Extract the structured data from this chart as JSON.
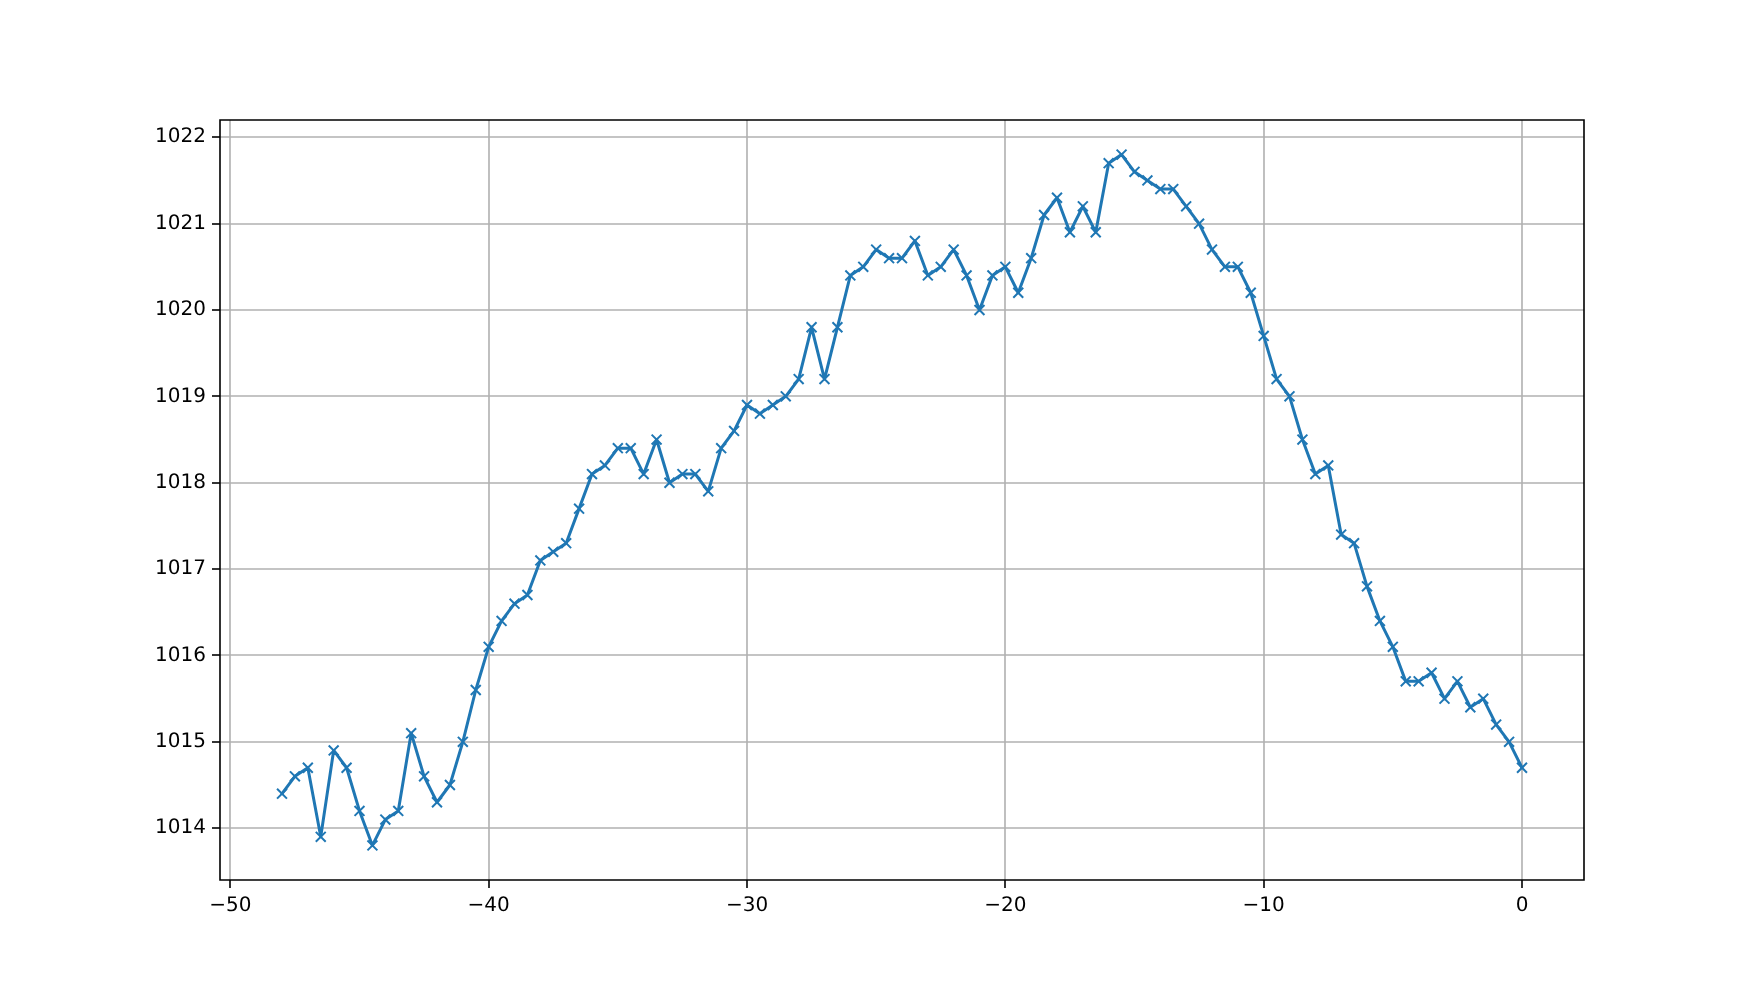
{
  "chart_data": {
    "type": "line",
    "x": [
      -48,
      -47.5,
      -47,
      -46.5,
      -46,
      -45.5,
      -45,
      -44.5,
      -44,
      -43.5,
      -43,
      -42.5,
      -42,
      -41.5,
      -41,
      -40.5,
      -40,
      -39.5,
      -39,
      -38.5,
      -38,
      -37.5,
      -37,
      -36.5,
      -36,
      -35.5,
      -35,
      -34.5,
      -34,
      -33.5,
      -33,
      -32.5,
      -32,
      -31.5,
      -31,
      -30.5,
      -30,
      -29.5,
      -29,
      -28.5,
      -28,
      -27.5,
      -27,
      -26.5,
      -26,
      -25.5,
      -25,
      -24.5,
      -24,
      -23.5,
      -23,
      -22.5,
      -22,
      -21.5,
      -21,
      -20.5,
      -20,
      -19.5,
      -19,
      -18.5,
      -18,
      -17.5,
      -17,
      -16.5,
      -16,
      -15.5,
      -15,
      -14.5,
      -14,
      -13.5,
      -13,
      -12.5,
      -12,
      -11.5,
      -11,
      -10.5,
      -10,
      -9.5,
      -9,
      -8.5,
      -8,
      -7.5,
      -7,
      -6.5,
      -6,
      -5.5,
      -5,
      -4.5,
      -4,
      -3.5,
      -3,
      -2.5,
      -2,
      -1.5,
      -1,
      -0.5,
      0
    ],
    "series": [
      {
        "color": "#1f77b4",
        "values": [
          1014.4,
          1014.6,
          1014.7,
          1013.9,
          1014.9,
          1014.7,
          1014.2,
          1013.8,
          1014.1,
          1014.2,
          1015.1,
          1014.6,
          1014.3,
          1014.5,
          1015.0,
          1015.6,
          1016.1,
          1016.4,
          1016.6,
          1016.7,
          1017.1,
          1017.2,
          1017.3,
          1017.7,
          1018.1,
          1018.2,
          1018.4,
          1018.4,
          1018.1,
          1018.5,
          1018.0,
          1018.1,
          1018.1,
          1017.9,
          1018.4,
          1018.6,
          1018.9,
          1018.8,
          1018.9,
          1019.0,
          1019.2,
          1019.8,
          1019.2,
          1019.8,
          1020.4,
          1020.5,
          1020.7,
          1020.6,
          1020.6,
          1020.8,
          1020.4,
          1020.5,
          1020.7,
          1020.4,
          1020.0,
          1020.4,
          1020.5,
          1020.2,
          1020.6,
          1021.1,
          1021.3,
          1020.9,
          1021.2,
          1020.9,
          1021.7,
          1021.8,
          1021.6,
          1021.5,
          1021.4,
          1021.4,
          1021.2,
          1021.0,
          1020.7,
          1020.5,
          1020.5,
          1020.2,
          1019.7,
          1019.2,
          1019.0,
          1018.5,
          1018.1,
          1018.2,
          1017.4,
          1017.3,
          1016.8,
          1016.4,
          1016.1,
          1015.7,
          1015.7,
          1015.8,
          1015.5,
          1015.7,
          1015.4,
          1015.5,
          1015.2,
          1015.0,
          1014.7
        ]
      }
    ],
    "xlim": [
      -50.4,
      2.4
    ],
    "ylim": [
      1013.4,
      1022.2
    ],
    "xticks": [
      {
        "value": -50,
        "label": "−50"
      },
      {
        "value": -40,
        "label": "−40"
      },
      {
        "value": -30,
        "label": "−30"
      },
      {
        "value": -20,
        "label": "−20"
      },
      {
        "value": -10,
        "label": "−10"
      },
      0
    ],
    "yticks": [
      1014,
      1015,
      1016,
      1017,
      1018,
      1019,
      1020,
      1021,
      1022
    ],
    "grid": true,
    "marker": "cross",
    "line_style": "solid"
  }
}
